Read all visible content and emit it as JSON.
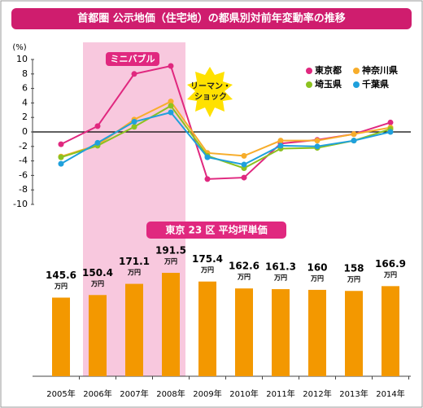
{
  "chart_data": [
    {
      "type": "line",
      "title": "首都圏 公示地価（住宅地）の都県別対前年変動率の推移",
      "y_unit": "(%)",
      "ylim": [
        -10,
        10
      ],
      "yticks": [
        10,
        8,
        6,
        4,
        2,
        0,
        -2,
        -4,
        -6,
        -8,
        -10
      ],
      "annotations": [
        "ミニバブル",
        "リーマン・ショック"
      ],
      "series": [
        {
          "name": "東京都",
          "color": "#e0287f",
          "values": [
            -1.7,
            0.8,
            8.0,
            9.1,
            -6.5,
            -6.3,
            -1.6,
            -1.1,
            -0.3,
            1.3
          ]
        },
        {
          "name": "神奈川県",
          "color": "#f7ad2b",
          "values": [
            -3.4,
            -1.8,
            1.7,
            4.2,
            -2.9,
            -3.3,
            -1.2,
            -1.2,
            -0.3,
            0.6
          ]
        },
        {
          "name": "埼玉県",
          "color": "#8cc220",
          "values": [
            -3.5,
            -1.9,
            0.7,
            3.6,
            -3.3,
            -5.0,
            -2.3,
            -2.2,
            -1.2,
            0.4
          ]
        },
        {
          "name": "千葉県",
          "color": "#1fa0dc",
          "values": [
            -4.4,
            -1.5,
            1.4,
            2.7,
            -3.5,
            -4.5,
            -1.9,
            -2.0,
            -1.2,
            0.0
          ]
        }
      ]
    },
    {
      "type": "bar",
      "title": "東京 23 区 平均坪単価",
      "unit": "万円",
      "color": "#f39800",
      "categories": [
        "2005年",
        "2006年",
        "2007年",
        "2008年",
        "2009年",
        "2010年",
        "2011年",
        "2012年",
        "2013年",
        "2014年"
      ],
      "values": [
        145.6,
        150.4,
        171.1,
        191.5,
        175.4,
        162.6,
        161.3,
        160.0,
        158.0,
        166.9
      ]
    }
  ]
}
